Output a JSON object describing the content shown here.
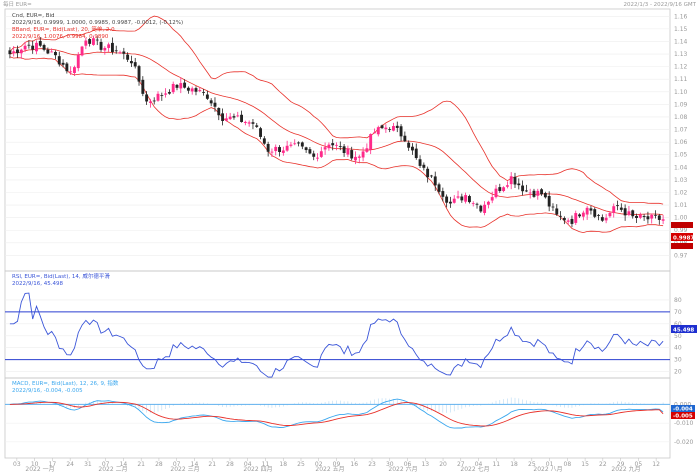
{
  "topbar": {
    "left": "每日 EUR=",
    "right": "2022/1/3 - 2022/9/16 GMT"
  },
  "colors": {
    "up": "#ff2a8a",
    "down": "#222222",
    "bollinger": "#e8312a",
    "rsi": "#3a55d8",
    "macd": "#3aa7ee",
    "signal": "#e8312a",
    "hist": "#6fb6e8",
    "price_tag": "#d50000",
    "rsi_tag": "#1e2fd0",
    "macd_tag": "#1e66d0",
    "signal_tag": "#d50000"
  },
  "legend": {
    "price_l1": "Cnd, EUR=, Bid",
    "price_l2": "2022/9/16, 0.9999, 1.0000, 0.9985, 0.9987, -0.0012, (-0.12%)",
    "price_l3": "BBand, EUR=, Bid(Last), 20, 简单, 2.0",
    "price_l4": "2022/9/16, 1.0076, 0.9984, 0.9890",
    "rsi_l1": "RSI, EUR=, Bid(Last), 14, 威尔德平滑",
    "rsi_l2": "2022/9/16, 45.498",
    "macd_l1": "MACD, EUR=, Bid(Last), 12, 26, 9, 指数",
    "macd_l2": "2022/9/16, -0.004, -0.005"
  },
  "tags": {
    "price_last": "0.9987",
    "rsi_last": "45.498",
    "macd_last": "-0.004",
    "signal_last": "-0.005"
  },
  "chart_data": [
    {
      "type": "candlestick",
      "title": "Cnd, EUR=, Bid",
      "ylim": [
        0.96,
        1.165
      ],
      "y_ticks": [
        "1.16",
        "1.15",
        "1.14",
        "1.13",
        "1.12",
        "1.11",
        "1.10",
        "1.09",
        "1.08",
        "1.07",
        "1.06",
        "1.05",
        "1.04",
        "1.03",
        "1.02",
        "1.01",
        "1.00",
        "0.99",
        "0.98",
        "0.97"
      ],
      "x_labels": [
        "2022 一月",
        "2022 二月",
        "2022 三月",
        "2022 四月",
        "2022 五月",
        "2022 六月",
        "2022 七月",
        "2022 八月",
        "2022 九月"
      ],
      "day_labels": [
        "03",
        "10",
        "17",
        "24",
        "31",
        "07",
        "14",
        "21",
        "28",
        "07",
        "14",
        "21",
        "28",
        "04",
        "11",
        "18",
        "25",
        "02",
        "09",
        "16",
        "23",
        "30",
        "06",
        "13",
        "20",
        "27",
        "04",
        "11",
        "18",
        "25",
        "01",
        "08",
        "15",
        "22",
        "29",
        "05",
        "12"
      ],
      "close_anchors": [
        1.13,
        1.137,
        1.136,
        1.128,
        1.115,
        1.143,
        1.136,
        1.133,
        1.125,
        1.092,
        1.098,
        1.105,
        1.102,
        1.097,
        1.08,
        1.078,
        1.075,
        1.054,
        1.055,
        1.056,
        1.048,
        1.06,
        1.053,
        1.048,
        1.068,
        1.073,
        1.064,
        1.04,
        1.028,
        1.011,
        1.018,
        1.008,
        1.021,
        1.032,
        1.021,
        1.019,
        1.001,
        0.998,
        1.01,
        0.998,
        1.009,
        1.0,
        0.999,
        0.9987
      ]
    },
    {
      "type": "line",
      "title": "RSI, EUR=, Bid(Last), 14",
      "ylim": [
        18,
        90
      ],
      "y_ticks": [
        "80",
        "70",
        "60",
        "50",
        "40",
        "30",
        "20"
      ],
      "last": 45.498
    },
    {
      "type": "line",
      "title": "MACD, EUR=, Bid(Last), 12, 26, 9",
      "ylim": [
        -0.027,
        0.005
      ],
      "y_ticks": [
        "0.000",
        "-0.010",
        "-0.020"
      ],
      "series": [
        {
          "name": "MACD",
          "last": -0.004
        },
        {
          "name": "Signal",
          "last": -0.005
        }
      ]
    }
  ]
}
